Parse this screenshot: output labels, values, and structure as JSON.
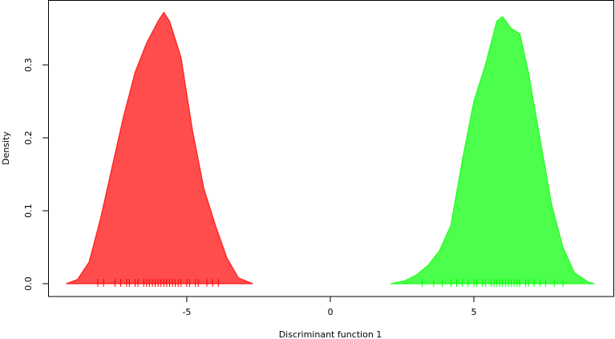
{
  "chart_data": {
    "type": "density",
    "x_label": "Discriminant function 1",
    "y_label": "Density",
    "xlim": [
      -9.83,
      9.86
    ],
    "ylim": [
      -0.0176,
      0.389
    ],
    "xticks": [
      -5,
      0,
      5
    ],
    "yticks": [
      {
        "value": 0,
        "label": "0.0"
      },
      0.1,
      0.2,
      0.3
    ],
    "series": [
      {
        "color": "#ff0000",
        "x": [
          -9.2,
          -8.8,
          -8.4,
          -8.0,
          -7.6,
          -7.2,
          -6.8,
          -6.4,
          -6.0,
          -5.8,
          -5.6,
          -5.2,
          -4.8,
          -4.4,
          -4.0,
          -3.6,
          -3.2,
          -2.7
        ],
        "values": [
          0,
          0.006,
          0.03,
          0.09,
          0.16,
          0.23,
          0.29,
          0.33,
          0.36,
          0.372,
          0.36,
          0.31,
          0.21,
          0.13,
          0.08,
          0.035,
          0.008,
          0
        ],
        "rug": [
          -8.1,
          -7.9,
          -7.5,
          -7.3,
          -7.1,
          -7.0,
          -6.8,
          -6.7,
          -6.5,
          -6.4,
          -6.3,
          -6.2,
          -6.1,
          -6.0,
          -5.9,
          -5.8,
          -5.7,
          -5.6,
          -5.5,
          -5.4,
          -5.3,
          -5.2,
          -5.0,
          -4.9,
          -4.7,
          -4.6,
          -4.3,
          -4.1,
          -3.9
        ]
      },
      {
        "color": "#00ff00",
        "x": [
          2.1,
          2.6,
          3.0,
          3.4,
          3.8,
          4.2,
          4.6,
          5.0,
          5.4,
          5.8,
          6.0,
          6.3,
          6.6,
          6.9,
          7.3,
          7.7,
          8.1,
          8.5,
          9.0,
          9.2
        ],
        "values": [
          0,
          0.004,
          0.012,
          0.025,
          0.045,
          0.08,
          0.17,
          0.25,
          0.3,
          0.36,
          0.366,
          0.35,
          0.343,
          0.29,
          0.2,
          0.11,
          0.05,
          0.015,
          0.002,
          0
        ],
        "rug": [
          3.2,
          3.6,
          3.9,
          4.2,
          4.4,
          4.6,
          4.8,
          5.0,
          5.1,
          5.3,
          5.4,
          5.6,
          5.7,
          5.8,
          5.9,
          6.0,
          6.1,
          6.2,
          6.3,
          6.4,
          6.5,
          6.6,
          6.8,
          6.9,
          7.1,
          7.3,
          7.5,
          7.8,
          8.1
        ]
      }
    ]
  }
}
